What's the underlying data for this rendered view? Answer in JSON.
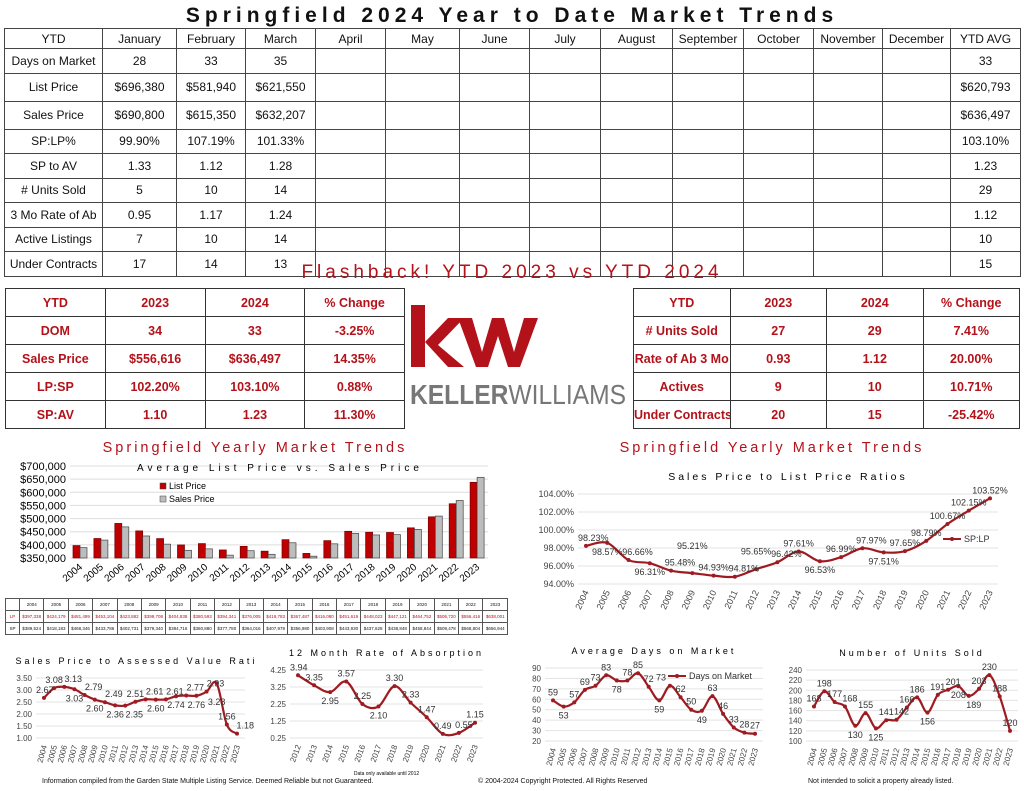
{
  "title": "Springfield 2024 Year to Date Market Trends",
  "ytd_table": {
    "headers": [
      "YTD",
      "January",
      "February",
      "March",
      "April",
      "May",
      "June",
      "July",
      "August",
      "September",
      "October",
      "November",
      "December",
      "YTD AVG"
    ],
    "rows": [
      {
        "label": "Days on Market",
        "values": [
          "28",
          "33",
          "35",
          "",
          "",
          "",
          "",
          "",
          "",
          "",
          "",
          ""
        ],
        "avg": "33"
      },
      {
        "label": "List Price",
        "values": [
          "$696,380",
          "$581,940",
          "$621,550",
          "",
          "",
          "",
          "",
          "",
          "",
          "",
          "",
          ""
        ],
        "avg": "$620,793"
      },
      {
        "label": "Sales Price",
        "values": [
          "$690,800",
          "$615,350",
          "$632,207",
          "",
          "",
          "",
          "",
          "",
          "",
          "",
          "",
          ""
        ],
        "avg": "$636,497"
      },
      {
        "label": "SP:LP%",
        "values": [
          "99.90%",
          "107.19%",
          "101.33%",
          "",
          "",
          "",
          "",
          "",
          "",
          "",
          "",
          ""
        ],
        "avg": "103.10%"
      },
      {
        "label": "SP to AV",
        "values": [
          "1.33",
          "1.12",
          "1.28",
          "",
          "",
          "",
          "",
          "",
          "",
          "",
          "",
          ""
        ],
        "avg": "1.23"
      },
      {
        "label": "# Units Sold",
        "values": [
          "5",
          "10",
          "14",
          "",
          "",
          "",
          "",
          "",
          "",
          "",
          "",
          ""
        ],
        "avg": "29"
      },
      {
        "label": "3 Mo Rate of Ab",
        "values": [
          "0.95",
          "1.17",
          "1.24",
          "",
          "",
          "",
          "",
          "",
          "",
          "",
          "",
          ""
        ],
        "avg": "1.12"
      },
      {
        "label": "Active Listings",
        "values": [
          "7",
          "10",
          "14",
          "",
          "",
          "",
          "",
          "",
          "",
          "",
          "",
          ""
        ],
        "avg": "10"
      },
      {
        "label": "Under Contracts",
        "values": [
          "17",
          "14",
          "13",
          "",
          "",
          "",
          "",
          "",
          "",
          "",
          "",
          ""
        ],
        "avg": "15"
      }
    ]
  },
  "flashback": {
    "title": "Flashback!  YTD 2023 vs YTD 2024",
    "left": [
      [
        "YTD",
        "2023",
        "2024",
        "% Change"
      ],
      [
        "DOM",
        "34",
        "33",
        "-3.25%"
      ],
      [
        "Sales Price",
        "$556,616",
        "$636,497",
        "14.35%"
      ],
      [
        "LP:SP",
        "102.20%",
        "103.10%",
        "0.88%"
      ],
      [
        "SP:AV",
        "1.10",
        "1.23",
        "11.30%"
      ]
    ],
    "right": [
      [
        "YTD",
        "2023",
        "2024",
        "% Change"
      ],
      [
        "# Units Sold",
        "27",
        "29",
        "7.41%"
      ],
      [
        "Rate of Ab 3 Mo",
        "0.93",
        "1.12",
        "20.00%"
      ],
      [
        "Actives",
        "9",
        "10",
        "10.71%"
      ],
      [
        "Under Contracts",
        "20",
        "15",
        "-25.42%"
      ]
    ]
  },
  "logo": {
    "mark": "kw",
    "text_bold": "KELLER",
    "text_light": "WILLIAMS",
    "color": "#b3121a"
  },
  "section_title": "Springfield Yearly Market Trends",
  "footer": {
    "left": "Information compiled from the Garden State Multiple Listing Service.  Deemed Reliable but not Guaranteed.",
    "center": "© 2004-2024 Copyright Protected.  All Rights Reserved",
    "right": "Not intended to solicit a property already listed."
  },
  "colors": {
    "accent": "#b3121a",
    "line": "#9e1b22",
    "gray": "#bdbdbd"
  },
  "chart_data": [
    {
      "type": "bar",
      "title": "Average List Price vs. Sales Price",
      "categories": [
        "2004",
        "2005",
        "2006",
        "2007",
        "2008",
        "2009",
        "2010",
        "2011",
        "2012",
        "2013",
        "2014",
        "2015",
        "2016",
        "2017",
        "2018",
        "2019",
        "2020",
        "2021",
        "2022",
        "2023"
      ],
      "series": [
        {
          "name": "List Price",
          "short": "LP",
          "values": [
            397338,
            424179,
            481499,
            453104,
            423882,
            399708,
            404838,
            380593,
            394341,
            376005,
            419783,
            367487,
            416080,
            451619,
            448023,
            447121,
            464752,
            506720,
            556416,
            638001
          ],
          "labels": [
            "$397,338",
            "$424,179",
            "$481,499",
            "$453,104",
            "$423,882",
            "$399,708",
            "$404,838",
            "$380,593",
            "$394,341",
            "$376,005",
            "$419,783",
            "$367,487",
            "$416,080",
            "$451,619",
            "$448,023",
            "$447,121",
            "$464,752",
            "$506,720",
            "$556,416",
            "$638,001"
          ]
        },
        {
          "name": "Sales Price",
          "short": "SP",
          "values": [
            389524,
            418183,
            468346,
            433786,
            402731,
            379340,
            384716,
            360880,
            377780,
            364016,
            407979,
            356980,
            403908,
            443930,
            437628,
            438848,
            458844,
            509478,
            568804,
            656944
          ],
          "labels": [
            "$389,524",
            "$418,183",
            "$468,346",
            "$433,786",
            "$402,731",
            "$379,340",
            "$384,716",
            "$360,880",
            "$377,780",
            "$364,016",
            "$407,979",
            "$356,980",
            "$403,908",
            "$443,930",
            "$437,628",
            "$438,848",
            "$458,844",
            "$509,478",
            "$568,804",
            "$656,944"
          ]
        }
      ],
      "ylim": [
        350000,
        700000
      ],
      "yticks": [
        "$350,000",
        "$400,000",
        "$450,000",
        "$500,000",
        "$550,000",
        "$600,000",
        "$650,000",
        "$700,000"
      ],
      "legend": "top-left"
    },
    {
      "type": "line",
      "title": "Sales Price to List Price Ratios",
      "x": [
        "2004",
        "2005",
        "2006",
        "2007",
        "2008",
        "2009",
        "2010",
        "2011",
        "2012",
        "2013",
        "2014",
        "2015",
        "2016",
        "2017",
        "2018",
        "2019",
        "2020",
        "2021",
        "2022",
        "2023"
      ],
      "series": [
        {
          "name": "SP:LP",
          "values": [
            98.23,
            98.57,
            96.66,
            96.31,
            95.48,
            95.21,
            94.93,
            94.81,
            95.65,
            96.42,
            97.61,
            96.53,
            96.99,
            97.97,
            97.51,
            97.65,
            98.79,
            100.67,
            102.15,
            103.52
          ],
          "labels": [
            "98.23%",
            "98.57%",
            "96.66%",
            "96.31%",
            "95.48%",
            "95.21%",
            "94.93%",
            "94.81%",
            "95.65%",
            "96.42%",
            "97.61%",
            "96.53%",
            "96.99%",
            "97.97%",
            "97.51%",
            "97.65%",
            "98.79%",
            "100.67%",
            "102.15%",
            "103.52%"
          ]
        }
      ],
      "ylim": [
        94,
        104
      ],
      "yticks": [
        "94.00%",
        "96.00%",
        "98.00%",
        "100.00%",
        "102.00%",
        "104.00%"
      ],
      "legend": "right"
    },
    {
      "type": "line",
      "title": "Sales Price to Assessed Value Ratio",
      "x": [
        "2004",
        "2005",
        "2006",
        "2007",
        "2008",
        "2009",
        "2010",
        "2011",
        "2012",
        "2013",
        "2014",
        "2015",
        "2016",
        "2017",
        "2018",
        "2019",
        "2020",
        "2021",
        "2022",
        "2023"
      ],
      "series": [
        {
          "name": "SP:AV",
          "values": [
            2.67,
            3.08,
            3.13,
            3.03,
            2.79,
            2.6,
            2.49,
            2.36,
            2.35,
            2.51,
            2.61,
            2.6,
            2.61,
            2.74,
            2.77,
            2.76,
            2.93,
            3.28,
            1.56,
            1.18
          ],
          "labels": [
            "2.67",
            "3.08",
            "3.13",
            "3.03",
            "2.79",
            "2.60",
            "2.49",
            "2.36",
            "2.35",
            "2.51",
            "2.61",
            "2.60",
            "2.61",
            "2.74",
            "2.77",
            "2.76",
            "2.93",
            "3.28",
            "1.56",
            "1.18"
          ]
        }
      ],
      "ylim": [
        1,
        3.5
      ],
      "yticks": [
        "1.00",
        "1.50",
        "2.00",
        "2.50",
        "3.00",
        "3.50"
      ],
      "legend": "none"
    },
    {
      "type": "line",
      "title": "12 Month Rate of Absorption",
      "note": "Data only available until 2012",
      "x": [
        "2012",
        "2013",
        "2014",
        "2015",
        "2016",
        "2017",
        "2018",
        "2019",
        "2020",
        "2021",
        "2022",
        "2023"
      ],
      "series": [
        {
          "name": "Rate of Absorption",
          "values": [
            3.94,
            3.35,
            2.95,
            3.57,
            2.25,
            2.1,
            3.3,
            2.33,
            1.47,
            0.49,
            0.55,
            1.15
          ],
          "labels": [
            "3.94",
            "3.35",
            "2.95",
            "3.57",
            "2.25",
            "2.10",
            "3.30",
            "2.33",
            "1.47",
            "0.49",
            "0.55",
            "1.15"
          ]
        }
      ],
      "ylim": [
        0.25,
        4.25
      ],
      "yticks": [
        "0.25",
        "1.25",
        "2.25",
        "3.25",
        "4.25"
      ],
      "legend": "none"
    },
    {
      "type": "line",
      "title": "Average Days on Market",
      "x": [
        "2004",
        "2005",
        "2006",
        "2007",
        "2008",
        "2009",
        "2010",
        "2011",
        "2012",
        "2013",
        "2014",
        "2015",
        "2016",
        "2017",
        "2018",
        "2019",
        "2020",
        "2021",
        "2022",
        "2023"
      ],
      "series": [
        {
          "name": "Days on Market",
          "values": [
            59,
            53,
            57,
            69,
            73,
            83,
            78,
            78,
            85,
            72,
            59,
            73,
            62,
            50,
            49,
            63,
            46,
            33,
            28,
            27
          ],
          "labels": [
            "59",
            "53",
            "57",
            "69",
            "73",
            "83",
            "78",
            "78",
            "85",
            "72",
            "59",
            "73",
            "62",
            "50",
            "49",
            "63",
            "46",
            "33",
            "28",
            "27"
          ]
        }
      ],
      "ylim": [
        20,
        90
      ],
      "yticks": [
        "20",
        "30",
        "40",
        "50",
        "60",
        "70",
        "80",
        "90"
      ],
      "legend": "top-right"
    },
    {
      "type": "line",
      "title": "Number of Units Sold",
      "x": [
        "2004",
        "2005",
        "2006",
        "2007",
        "2008",
        "2009",
        "2010",
        "2011",
        "2012",
        "2013",
        "2014",
        "2015",
        "2016",
        "2017",
        "2018",
        "2019",
        "2020",
        "2021",
        "2022",
        "2023"
      ],
      "series": [
        {
          "name": "Units Sold",
          "values": [
            168,
            198,
            177,
            168,
            130,
            155,
            125,
            141,
            142,
            166,
            186,
            156,
            191,
            201,
            208,
            189,
            203,
            230,
            188,
            120
          ],
          "labels": [
            "168",
            "198",
            "177",
            "168",
            "130",
            "155",
            "125",
            "141",
            "142",
            "166",
            "186",
            "156",
            "191",
            "201",
            "208",
            "189",
            "203",
            "230",
            "188",
            "120"
          ]
        }
      ],
      "ylim": [
        100,
        240
      ],
      "yticks": [
        "100",
        "120",
        "140",
        "160",
        "180",
        "200",
        "220",
        "240"
      ],
      "legend": "none"
    }
  ]
}
